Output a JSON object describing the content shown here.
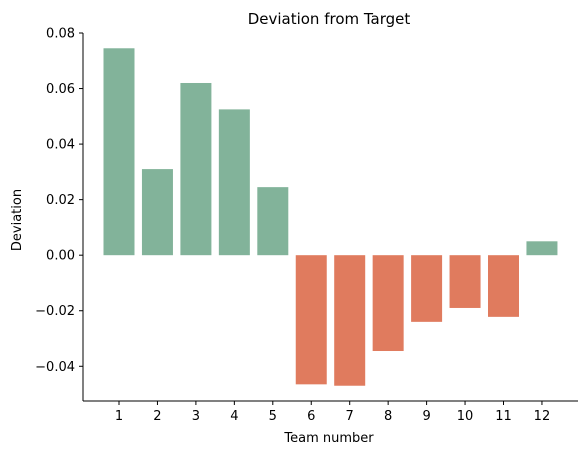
{
  "chart_data": {
    "type": "bar",
    "title": "Deviation from Target",
    "xlabel": "Team number",
    "ylabel": "Deviation",
    "categories": [
      "1",
      "2",
      "3",
      "4",
      "5",
      "6",
      "7",
      "8",
      "9",
      "10",
      "11",
      "12"
    ],
    "values": [
      0.0745,
      0.031,
      0.062,
      0.0525,
      0.0245,
      -0.0465,
      -0.047,
      -0.0345,
      -0.024,
      -0.019,
      -0.0222,
      0.005
    ],
    "ylim": [
      -0.0525,
      0.08
    ],
    "yticks": [
      -0.04,
      -0.02,
      0.0,
      0.02,
      0.04,
      0.06,
      0.08
    ],
    "ytick_labels": [
      "−0.04",
      "−0.02",
      "0.00",
      "0.02",
      "0.04",
      "0.06",
      "0.08"
    ],
    "grid": false,
    "legend": "none",
    "colors": {
      "positive": "#82b39a",
      "negative": "#e07b5e",
      "axis": "#000000",
      "text": "#000000"
    }
  }
}
